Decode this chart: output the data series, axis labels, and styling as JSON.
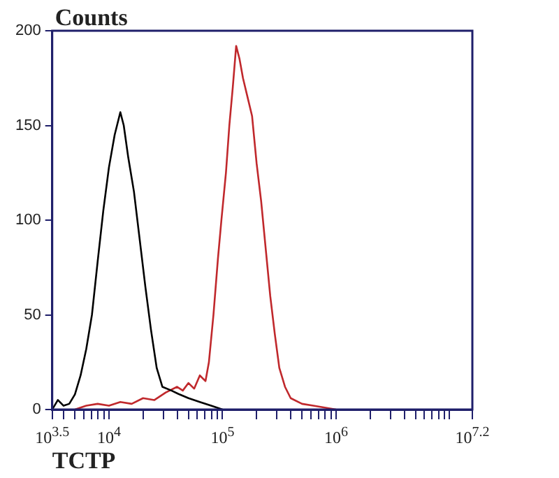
{
  "chart_data": {
    "type": "line",
    "ylabel": "Counts",
    "xlabel": "TCTP",
    "log": "x",
    "grid": false,
    "marker": "none",
    "xlim": [
      3162,
      15848932
    ],
    "ylim": [
      0,
      200
    ],
    "yticks": [
      0,
      50,
      100,
      150,
      200
    ],
    "xticks": [
      {
        "value": 3162,
        "label": "10$^{3.5}$"
      },
      {
        "value": 4000,
        "label": null
      },
      {
        "value": 5000,
        "label": null
      },
      {
        "value": 6000,
        "label": null
      },
      {
        "value": 7000,
        "label": null
      },
      {
        "value": 8000,
        "label": null
      },
      {
        "value": 9000,
        "label": null
      },
      {
        "value": 10000,
        "label": "10$^{4}$"
      },
      {
        "value": 20000,
        "label": null
      },
      {
        "value": 30000,
        "label": null
      },
      {
        "value": 40000,
        "label": null
      },
      {
        "value": 50000,
        "label": null
      },
      {
        "value": 60000,
        "label": null
      },
      {
        "value": 70000,
        "label": null
      },
      {
        "value": 80000,
        "label": null
      },
      {
        "value": 90000,
        "label": null
      },
      {
        "value": 100000,
        "label": "10$^{5}$"
      },
      {
        "value": 200000,
        "label": null
      },
      {
        "value": 300000,
        "label": null
      },
      {
        "value": 400000,
        "label": null
      },
      {
        "value": 500000,
        "label": null
      },
      {
        "value": 600000,
        "label": null
      },
      {
        "value": 700000,
        "label": null
      },
      {
        "value": 800000,
        "label": null
      },
      {
        "value": 900000,
        "label": null
      },
      {
        "value": 1000000,
        "label": "10$^{6}$"
      },
      {
        "value": 2000000,
        "label": null
      },
      {
        "value": 3000000,
        "label": null
      },
      {
        "value": 4000000,
        "label": null
      },
      {
        "value": 5000000,
        "label": null
      },
      {
        "value": 6000000,
        "label": null
      },
      {
        "value": 7000000,
        "label": null
      },
      {
        "value": 8000000,
        "label": null
      },
      {
        "value": 9000000,
        "label": null
      },
      {
        "value": 10000000,
        "label": null
      },
      {
        "value": 15848932,
        "label": "10$^{7.2}$"
      }
    ],
    "series": [
      {
        "color": "#000000",
        "x": [
          3162,
          3548,
          3981,
          4467,
          5012,
          5623,
          6310,
          7079,
          7943,
          8913,
          10000,
          11220,
          12589,
          13490,
          14791,
          16596,
          18621,
          20893,
          23442,
          26303,
          29512,
          35481,
          41687,
          50119,
          63096,
          79433,
          100000
        ],
        "values": [
          0,
          5,
          2,
          3,
          8,
          18,
          32,
          50,
          78,
          105,
          128,
          145,
          157,
          150,
          133,
          115,
          90,
          65,
          42,
          22,
          12,
          10,
          8,
          6,
          4,
          2,
          0
        ]
      },
      {
        "color": "#c0282c",
        "x": [
          5012,
          6310,
          7943,
          10000,
          12589,
          15849,
          19953,
          25119,
          31623,
          39811,
          44668,
          50119,
          56234,
          63096,
          70795,
          75858,
          83176,
          91201,
          97724,
          107152,
          114815,
          123027,
          131826,
          141254,
          151356,
          165959,
          181970,
          199526,
          218776,
          239883,
          263027,
          288403,
          316228,
          354813,
          398107,
          501187,
          630957,
          794328,
          1000000
        ],
        "values": [
          0,
          2,
          3,
          2,
          4,
          3,
          6,
          5,
          9,
          12,
          10,
          14,
          11,
          18,
          15,
          25,
          50,
          80,
          100,
          125,
          150,
          170,
          192,
          185,
          175,
          165,
          155,
          130,
          110,
          85,
          60,
          40,
          22,
          12,
          6,
          3,
          2,
          1,
          0
        ]
      }
    ]
  }
}
